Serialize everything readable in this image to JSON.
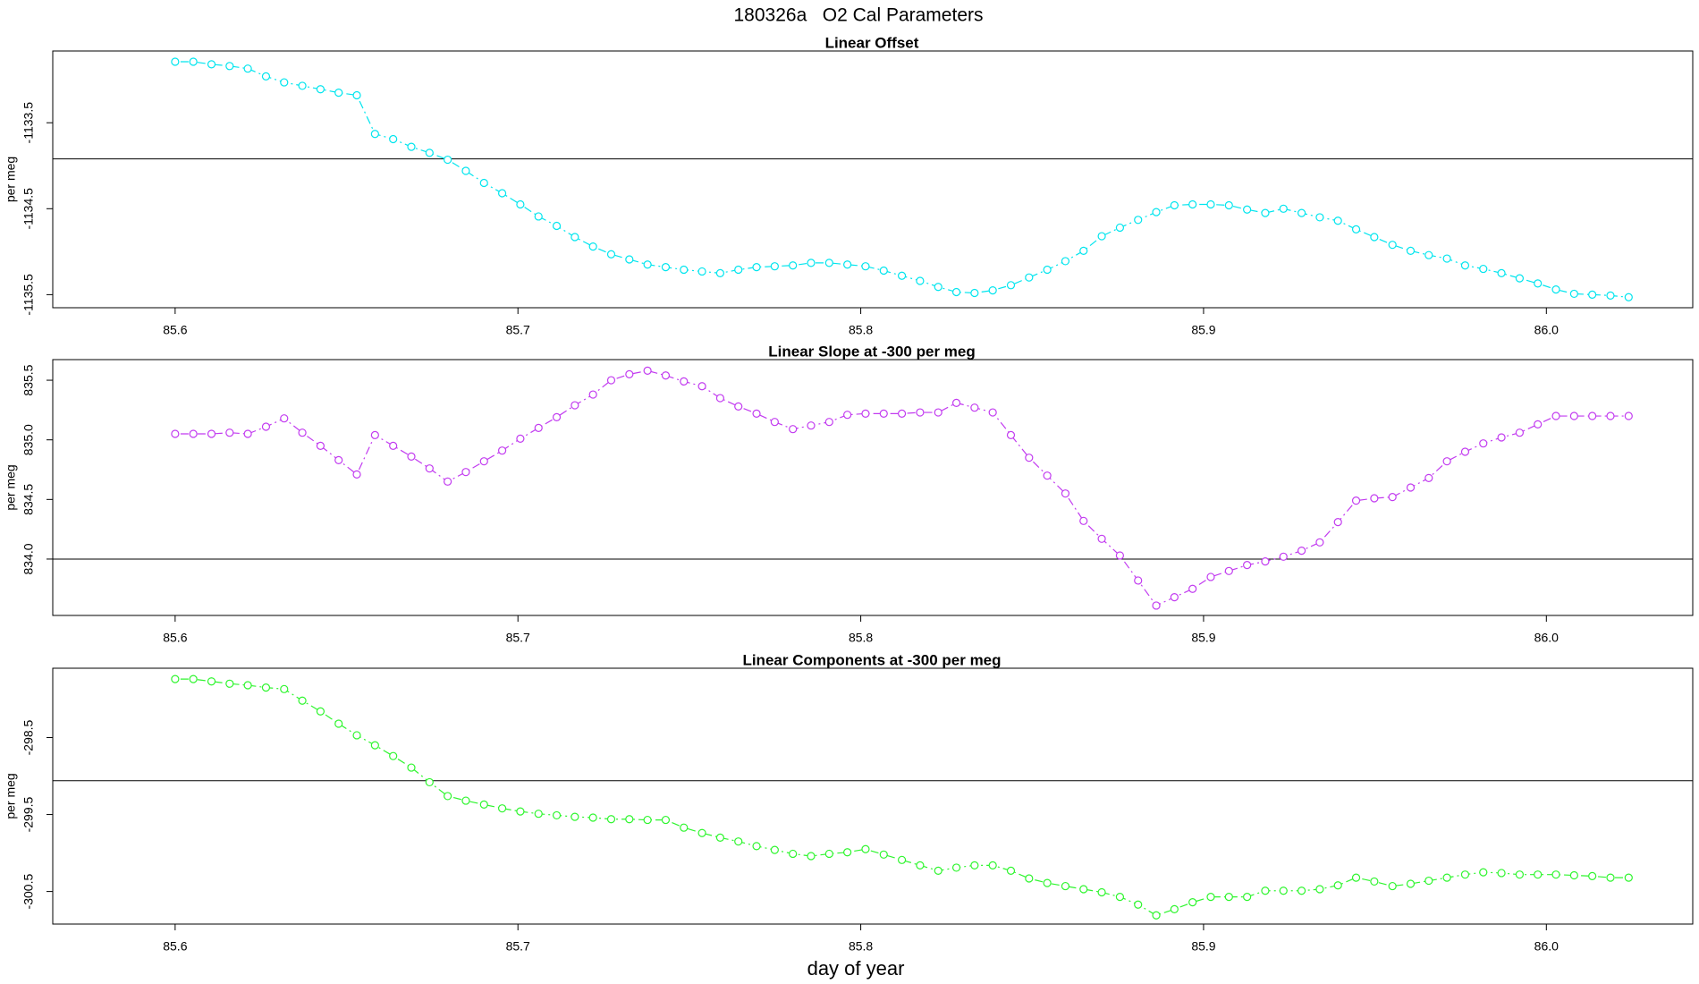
{
  "title": "180326a   O2 Cal Parameters",
  "xlabel": "day of year",
  "chart_data": [
    {
      "type": "line",
      "title": "Linear Offset",
      "ylabel": "per meg",
      "color": "#00e5ee",
      "hline": -1133.92,
      "xlim": [
        85.5643,
        86.0427
      ],
      "xticks": [
        85.6,
        85.7,
        85.8,
        85.9,
        {
          "value": 86,
          "label": "86.0"
        }
      ],
      "ylim": [
        -1135.652,
        -1132.665
      ],
      "yticks": [
        -1133.5,
        -1134.5,
        -1135.5
      ],
      "x": [
        85.6,
        85.6053,
        85.6106,
        85.6159,
        85.6212,
        85.6265,
        85.6318,
        85.6371,
        85.6424,
        85.6477,
        85.653,
        85.6583,
        85.6636,
        85.6689,
        85.6742,
        85.6795,
        85.6848,
        85.6901,
        85.6954,
        85.7007,
        85.706,
        85.7113,
        85.7166,
        85.7219,
        85.7272,
        85.7325,
        85.7378,
        85.7431,
        85.7484,
        85.7537,
        85.759,
        85.7643,
        85.7696,
        85.7749,
        85.7802,
        85.7855,
        85.7908,
        85.7961,
        85.8014,
        85.8067,
        85.812,
        85.8173,
        85.8226,
        85.8279,
        85.8332,
        85.8385,
        85.8438,
        85.8491,
        85.8544,
        85.8597,
        85.865,
        85.8703,
        85.8756,
        85.8809,
        85.8862,
        85.8915,
        85.8968,
        85.9021,
        85.9074,
        85.9127,
        85.918,
        85.9233,
        85.9286,
        85.9339,
        85.9392,
        85.9445,
        85.9498,
        85.9551,
        85.9604,
        85.9657,
        85.971,
        85.9763,
        85.9816,
        85.9869,
        85.9922,
        85.9975,
        86.0028,
        86.0081,
        86.0134,
        86.0187,
        86.024
      ],
      "values": [
        -1132.79,
        -1132.79,
        -1132.82,
        -1132.84,
        -1132.87,
        -1132.96,
        -1133.03,
        -1133.07,
        -1133.11,
        -1133.15,
        -1133.18,
        -1133.63,
        -1133.69,
        -1133.78,
        -1133.85,
        -1133.93,
        -1134.06,
        -1134.2,
        -1134.32,
        -1134.45,
        -1134.59,
        -1134.7,
        -1134.83,
        -1134.94,
        -1135.03,
        -1135.09,
        -1135.15,
        -1135.18,
        -1135.21,
        -1135.23,
        -1135.25,
        -1135.21,
        -1135.18,
        -1135.17,
        -1135.16,
        -1135.13,
        -1135.13,
        -1135.15,
        -1135.17,
        -1135.22,
        -1135.28,
        -1135.34,
        -1135.41,
        -1135.47,
        -1135.48,
        -1135.45,
        -1135.39,
        -1135.3,
        -1135.21,
        -1135.11,
        -1134.99,
        -1134.82,
        -1134.72,
        -1134.63,
        -1134.54,
        -1134.46,
        -1134.45,
        -1134.45,
        -1134.46,
        -1134.51,
        -1134.55,
        -1134.5,
        -1134.55,
        -1134.6,
        -1134.64,
        -1134.74,
        -1134.83,
        -1134.92,
        -1134.99,
        -1135.04,
        -1135.08,
        -1135.16,
        -1135.2,
        -1135.25,
        -1135.31,
        -1135.37,
        -1135.44,
        -1135.49,
        -1135.5,
        -1135.51,
        -1135.53
      ]
    },
    {
      "type": "line",
      "title": "Linear Slope at -300 per meg",
      "ylabel": "per meg",
      "color": "#c23bf0",
      "hline": 834.0,
      "xlim": [
        85.5643,
        86.0427
      ],
      "xticks": [
        85.6,
        85.7,
        85.8,
        85.9,
        {
          "value": 86,
          "label": "86.0"
        }
      ],
      "ylim": [
        833.527,
        835.673
      ],
      "yticks": [
        835.5,
        {
          "value": 835,
          "label": "835.0"
        },
        834.5,
        {
          "value": 834,
          "label": "834.0"
        }
      ],
      "x": [
        85.6,
        85.6053,
        85.6106,
        85.6159,
        85.6212,
        85.6265,
        85.6318,
        85.6371,
        85.6424,
        85.6477,
        85.653,
        85.6583,
        85.6636,
        85.6689,
        85.6742,
        85.6795,
        85.6848,
        85.6901,
        85.6954,
        85.7007,
        85.706,
        85.7113,
        85.7166,
        85.7219,
        85.7272,
        85.7325,
        85.7378,
        85.7431,
        85.7484,
        85.7537,
        85.759,
        85.7643,
        85.7696,
        85.7749,
        85.7802,
        85.7855,
        85.7908,
        85.7961,
        85.8014,
        85.8067,
        85.812,
        85.8173,
        85.8226,
        85.8279,
        85.8332,
        85.8385,
        85.8438,
        85.8491,
        85.8544,
        85.8597,
        85.865,
        85.8703,
        85.8756,
        85.8809,
        85.8862,
        85.8915,
        85.8968,
        85.9021,
        85.9074,
        85.9127,
        85.918,
        85.9233,
        85.9286,
        85.9339,
        85.9392,
        85.9445,
        85.9498,
        85.9551,
        85.9604,
        85.9657,
        85.971,
        85.9763,
        85.9816,
        85.9869,
        85.9922,
        85.9975,
        86.0028,
        86.0081,
        86.0134,
        86.0187,
        86.024
      ],
      "values": [
        835.05,
        835.05,
        835.05,
        835.06,
        835.05,
        835.11,
        835.18,
        835.06,
        834.95,
        834.83,
        834.71,
        835.04,
        834.95,
        834.86,
        834.76,
        834.65,
        834.73,
        834.82,
        834.91,
        835.01,
        835.1,
        835.19,
        835.29,
        835.38,
        835.5,
        835.55,
        835.58,
        835.54,
        835.49,
        835.45,
        835.35,
        835.28,
        835.22,
        835.15,
        835.09,
        835.12,
        835.15,
        835.21,
        835.22,
        835.22,
        835.22,
        835.23,
        835.23,
        835.31,
        835.27,
        835.23,
        835.04,
        834.85,
        834.7,
        834.55,
        834.32,
        834.17,
        834.03,
        833.82,
        833.61,
        833.68,
        833.75,
        833.85,
        833.9,
        833.95,
        833.98,
        834.02,
        834.07,
        834.14,
        834.31,
        834.49,
        834.51,
        834.52,
        834.6,
        834.68,
        834.82,
        834.9,
        834.97,
        835.02,
        835.06,
        835.13,
        835.2,
        835.2,
        835.2,
        835.2,
        835.2
      ]
    },
    {
      "type": "line",
      "title": "Linear Components at -300 per meg",
      "ylabel": "per meg",
      "color": "#2ef52e",
      "hline": -299.06,
      "xlim": [
        85.5643,
        86.0427
      ],
      "xticks": [
        85.6,
        85.7,
        85.8,
        85.9,
        {
          "value": 86,
          "label": "86.0"
        }
      ],
      "ylim": [
        -300.923,
        -297.599
      ],
      "yticks": [
        -298.5,
        -299.5,
        -300.5
      ],
      "x": [
        85.6,
        85.6053,
        85.6106,
        85.6159,
        85.6212,
        85.6265,
        85.6318,
        85.6371,
        85.6424,
        85.6477,
        85.653,
        85.6583,
        85.6636,
        85.6689,
        85.6742,
        85.6795,
        85.6848,
        85.6901,
        85.6954,
        85.7007,
        85.706,
        85.7113,
        85.7166,
        85.7219,
        85.7272,
        85.7325,
        85.7378,
        85.7431,
        85.7484,
        85.7537,
        85.759,
        85.7643,
        85.7696,
        85.7749,
        85.7802,
        85.7855,
        85.7908,
        85.7961,
        85.8014,
        85.8067,
        85.812,
        85.8173,
        85.8226,
        85.8279,
        85.8332,
        85.8385,
        85.8438,
        85.8491,
        85.8544,
        85.8597,
        85.865,
        85.8703,
        85.8756,
        85.8809,
        85.8862,
        85.8915,
        85.8968,
        85.9021,
        85.9074,
        85.9127,
        85.918,
        85.9233,
        85.9286,
        85.9339,
        85.9392,
        85.9445,
        85.9498,
        85.9551,
        85.9604,
        85.9657,
        85.971,
        85.9763,
        85.9816,
        85.9869,
        85.9922,
        85.9975,
        86.0028,
        86.0081,
        86.0134,
        86.0187,
        86.024
      ],
      "values": [
        -297.74,
        -297.74,
        -297.77,
        -297.8,
        -297.82,
        -297.85,
        -297.87,
        -298.02,
        -298.16,
        -298.32,
        -298.47,
        -298.6,
        -298.74,
        -298.89,
        -299.08,
        -299.26,
        -299.32,
        -299.37,
        -299.42,
        -299.46,
        -299.49,
        -299.51,
        -299.53,
        -299.54,
        -299.56,
        -299.56,
        -299.57,
        -299.57,
        -299.67,
        -299.74,
        -299.8,
        -299.85,
        -299.91,
        -299.96,
        -300.01,
        -300.04,
        -300.01,
        -299.99,
        -299.95,
        -300.02,
        -300.09,
        -300.16,
        -300.23,
        -300.19,
        -300.16,
        -300.16,
        -300.23,
        -300.33,
        -300.39,
        -300.43,
        -300.47,
        -300.51,
        -300.57,
        -300.67,
        -300.81,
        -300.73,
        -300.64,
        -300.57,
        -300.57,
        -300.57,
        -300.49,
        -300.49,
        -300.49,
        -300.47,
        -300.42,
        -300.32,
        -300.37,
        -300.43,
        -300.4,
        -300.36,
        -300.32,
        -300.28,
        -300.25,
        -300.26,
        -300.28,
        -300.28,
        -300.28,
        -300.29,
        -300.3,
        -300.32,
        -300.32
      ]
    }
  ]
}
